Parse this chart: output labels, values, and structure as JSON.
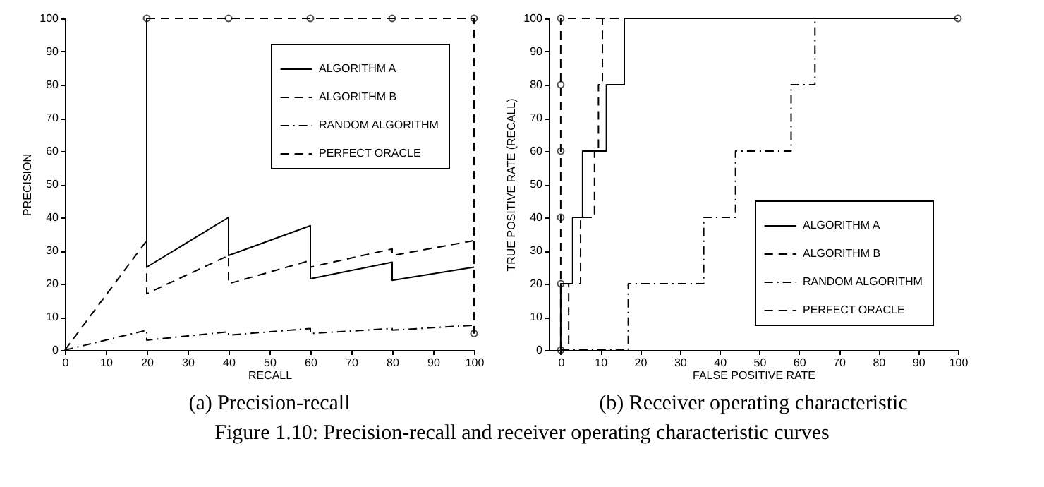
{
  "chart_data": [
    {
      "type": "line",
      "title": "(a) Precision-recall",
      "xlabel": "RECALL",
      "ylabel": "PRECISION",
      "xlim": [
        0,
        100
      ],
      "ylim": [
        0,
        100
      ],
      "xticks": [
        0,
        10,
        20,
        30,
        40,
        50,
        60,
        70,
        80,
        90,
        100
      ],
      "yticks": [
        0,
        10,
        20,
        30,
        40,
        50,
        60,
        70,
        80,
        90,
        100
      ],
      "grid": false,
      "legend": "top right",
      "annotations": [
        "Figure 1.10: Precision-recall and receiver operating characteristic curves"
      ],
      "series": [
        {
          "name": "ALGORITHM A",
          "color": "#000000",
          "line_style": "solid",
          "x": [
            20,
            20,
            40,
            40,
            60,
            60,
            80,
            80,
            100
          ],
          "values": [
            100,
            25,
            40,
            28.5,
            37.5,
            21.5,
            26.5,
            21,
            25
          ]
        },
        {
          "name": "ALGORITHM B",
          "color": "#000000",
          "line_style": "dashed",
          "x": [
            0,
            20,
            20,
            40,
            40,
            60,
            60,
            80,
            80,
            100
          ],
          "values": [
            0,
            33,
            17,
            28.5,
            20,
            27,
            25,
            30.5,
            28.5,
            33
          ]
        },
        {
          "name": "RANDOM ALGORITHM",
          "color": "#000000",
          "line_style": "dashdot",
          "x": [
            0,
            20,
            20,
            40,
            40,
            60,
            60,
            80,
            80,
            100,
            100
          ],
          "values": [
            0,
            6,
            3,
            5.5,
            4.5,
            6.5,
            5,
            6.5,
            6,
            7.5,
            5
          ]
        },
        {
          "name": "PERFECT ORACLE",
          "color": "#000000",
          "line_style": "dashed",
          "marker": "circle",
          "x": [
            20,
            40,
            60,
            80,
            100,
            100
          ],
          "values": [
            100,
            100,
            100,
            100,
            100,
            5
          ]
        }
      ]
    },
    {
      "type": "line",
      "title": "(b) Receiver operating characteristic",
      "xlabel": "FALSE POSITIVE RATE",
      "ylabel": "TRUE POSITIVE RATE (RECALL)",
      "xlim": [
        -3,
        100
      ],
      "ylim": [
        0,
        100
      ],
      "xticks": [
        0,
        10,
        20,
        30,
        40,
        50,
        60,
        70,
        80,
        90,
        100
      ],
      "yticks": [
        0,
        10,
        20,
        30,
        40,
        50,
        60,
        70,
        80,
        90,
        100
      ],
      "grid": false,
      "legend": "bottom right",
      "series": [
        {
          "name": "ALGORITHM A",
          "color": "#000000",
          "line_style": "solid",
          "x": [
            0,
            0,
            3,
            3,
            5.5,
            5.5,
            11.5,
            11.5,
            16,
            16,
            100
          ],
          "values": [
            0,
            20,
            20,
            40,
            40,
            60,
            60,
            80,
            80,
            100,
            100
          ]
        },
        {
          "name": "ALGORITHM B",
          "color": "#000000",
          "line_style": "dashed",
          "x": [
            0,
            2,
            2,
            5,
            5,
            8.5,
            8.5,
            9.5,
            9.5,
            10.5,
            10.5,
            100
          ],
          "values": [
            0,
            0,
            20,
            20,
            40,
            40,
            60,
            60,
            80,
            80,
            100,
            100
          ]
        },
        {
          "name": "RANDOM ALGORITHM",
          "color": "#000000",
          "line_style": "dashdot",
          "x": [
            0,
            17,
            17,
            36,
            36,
            44,
            44,
            58,
            58,
            64,
            64,
            100
          ],
          "values": [
            0,
            0,
            20,
            20,
            40,
            40,
            60,
            60,
            80,
            80,
            100,
            100
          ]
        },
        {
          "name": "PERFECT ORACLE",
          "color": "#000000",
          "line_style": "dashed",
          "marker": "circle",
          "x": [
            0,
            0,
            0,
            0,
            0,
            0,
            100
          ],
          "values": [
            0,
            20,
            40,
            60,
            80,
            100,
            100
          ]
        }
      ]
    }
  ]
}
